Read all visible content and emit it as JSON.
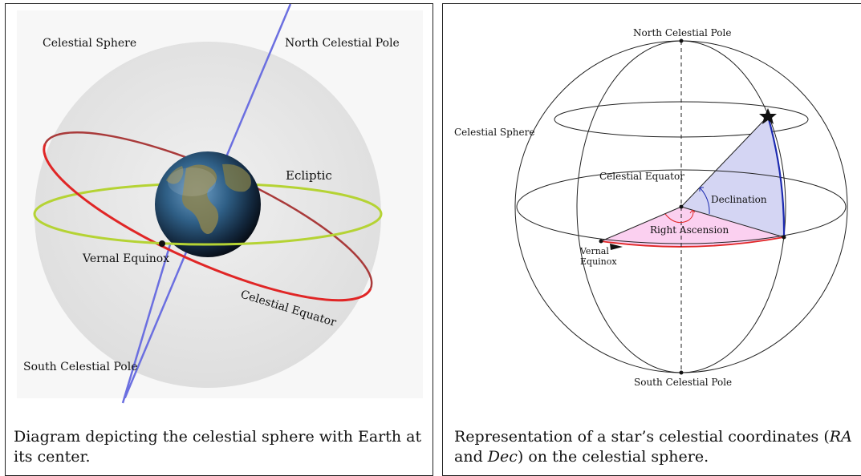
{
  "left_panel": {
    "labels": {
      "celestial_sphere": "Celestial Sphere",
      "north_pole": "North Celestial Pole",
      "ecliptic": "Ecliptic",
      "vernal_equinox": "Vernal Equinox",
      "celestial_equator": "Celestial Equator",
      "south_pole": "South Celestial Pole"
    },
    "caption": "Diagram depicting the celestial sphere with Earth at its center."
  },
  "right_panel": {
    "labels": {
      "north_pole": "North Celestial Pole",
      "celestial_sphere": "Celestial Sphere",
      "celestial_equator": "Celestial Equator",
      "declination": "Declination",
      "right_ascension": "Right Ascension",
      "vernal": "Vernal",
      "equinox": "Equinox",
      "south_pole": "South Celestial Pole"
    },
    "caption_before": "Representation of a star’s celestial coordinates (",
    "caption_ra": "RA",
    "caption_and": " and ",
    "caption_dec": "Dec",
    "caption_after": ") on the celestial sphere."
  },
  "colors": {
    "sphere_gray": "#e6e6e6",
    "pole_axis": "#6b6fe0",
    "ecliptic": "#b5d334",
    "equator_red": "#dd2a2a",
    "declination_fill": "#d4d5f3",
    "ra_fill": "#fbd0f0",
    "dec_arc": "#1c2ab0"
  }
}
